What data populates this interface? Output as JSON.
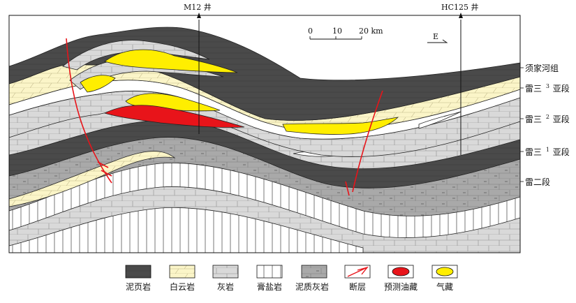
{
  "wells": [
    {
      "name": "M12 井"
    },
    {
      "name": "HC125 井"
    }
  ],
  "scale": {
    "ticks": [
      "0",
      "10",
      "20 km"
    ]
  },
  "direction": "E",
  "formations": [
    {
      "label": "须家河组"
    },
    {
      "label": "雷三",
      "sup": "3",
      "suffix": "亚段"
    },
    {
      "label": "雷三",
      "sup": "2",
      "suffix": "亚段"
    },
    {
      "label": "雷三",
      "sup": "1",
      "suffix": "亚段"
    },
    {
      "label": "雷二段"
    }
  ],
  "legend": [
    {
      "label": "泥页岩",
      "icon": "mudshale"
    },
    {
      "label": "白云岩",
      "icon": "dolomite"
    },
    {
      "label": "灰岩",
      "icon": "limestone"
    },
    {
      "label": "膏盐岩",
      "icon": "gypsum-salt"
    },
    {
      "label": "泥质灰岩",
      "icon": "argillaceous-limestone"
    },
    {
      "label": "断层",
      "icon": "fault"
    },
    {
      "label": "预测油藏",
      "icon": "oil-reservoir"
    },
    {
      "label": "气藏",
      "icon": "gas-reservoir"
    }
  ],
  "colors": {
    "mudshale": "#4a4a4a",
    "dolomite": "#fbf5c8",
    "limestone": "#d9d9d9",
    "argillaceous_limestone": "#a9a9a9",
    "oil": "#e8141a",
    "gas": "#ffee00",
    "fault": "#e8141a"
  }
}
